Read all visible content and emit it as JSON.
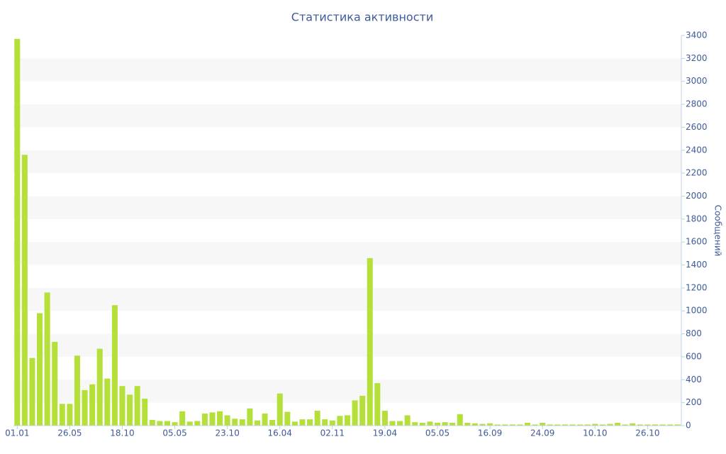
{
  "chart_data": {
    "type": "bar",
    "title": "Статистика активности",
    "y_label": "Сообщений",
    "color": "#b5e03a",
    "categories": [
      "01.01",
      null,
      null,
      null,
      null,
      null,
      null,
      "26.05",
      null,
      null,
      null,
      null,
      null,
      null,
      "18.10",
      null,
      null,
      null,
      null,
      null,
      null,
      "05.05",
      null,
      null,
      null,
      null,
      null,
      null,
      "23.10",
      null,
      null,
      null,
      null,
      null,
      null,
      "16.04",
      null,
      null,
      null,
      null,
      null,
      null,
      "02.11",
      null,
      null,
      null,
      null,
      null,
      null,
      "19.04",
      null,
      null,
      null,
      null,
      null,
      null,
      "05.05",
      null,
      null,
      null,
      null,
      null,
      null,
      "16.09",
      null,
      null,
      null,
      null,
      null,
      null,
      "24.09",
      null,
      null,
      null,
      null,
      null,
      null,
      "10.10",
      null,
      null,
      null,
      null,
      null,
      null,
      "26.10",
      null,
      null,
      null,
      null
    ],
    "values": [
      3370,
      2360,
      590,
      980,
      1160,
      730,
      190,
      190,
      610,
      310,
      360,
      670,
      410,
      1050,
      345,
      270,
      345,
      235,
      50,
      40,
      40,
      30,
      125,
      35,
      40,
      105,
      115,
      125,
      90,
      60,
      55,
      150,
      45,
      105,
      50,
      280,
      120,
      35,
      55,
      55,
      130,
      55,
      45,
      85,
      90,
      220,
      260,
      1460,
      370,
      130,
      40,
      40,
      90,
      30,
      25,
      35,
      25,
      30,
      25,
      100,
      25,
      20,
      15,
      20,
      10,
      10,
      10,
      10,
      25,
      10,
      25,
      10,
      10,
      10,
      10,
      10,
      10,
      15,
      10,
      15,
      25,
      10,
      20,
      10,
      10,
      10,
      10,
      10,
      10
    ],
    "ylim": [
      0,
      3400
    ],
    "yticks": [
      0,
      200,
      400,
      600,
      800,
      1000,
      1200,
      1400,
      1600,
      1800,
      2000,
      2200,
      2400,
      2600,
      2800,
      3000,
      3200,
      3400
    ],
    "grid": "bands"
  }
}
